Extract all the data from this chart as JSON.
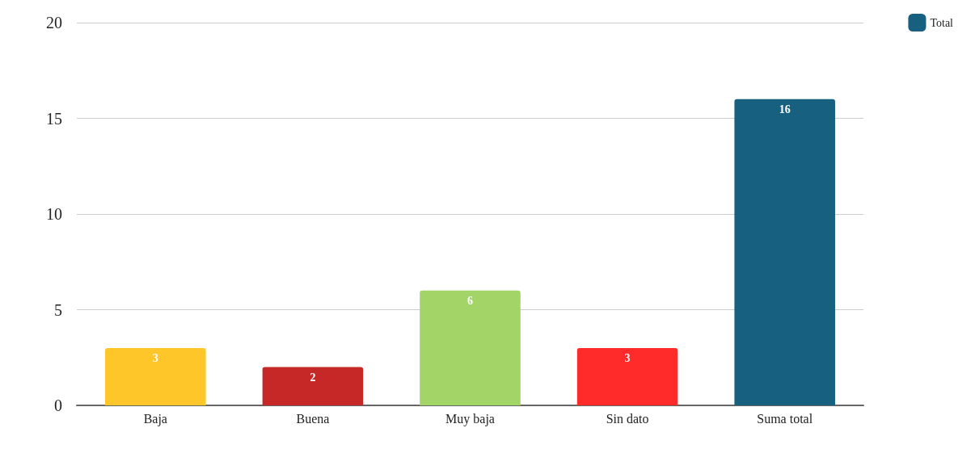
{
  "chart_data": {
    "type": "bar",
    "categories": [
      "Baja",
      "Buena",
      "Muy baja",
      "Sin dato",
      "Suma total"
    ],
    "series": [
      {
        "name": "Total",
        "color": "#17607f",
        "colors": [
          "#ffc629",
          "#c62828",
          "#a2d468",
          "#ff2a2a",
          "#17607f"
        ],
        "values": [
          3,
          2,
          6,
          3,
          16
        ]
      }
    ],
    "ylim": [
      0,
      20
    ],
    "yticks": [
      0,
      5,
      10,
      15,
      20
    ],
    "grid": "y",
    "legend": "top right",
    "data_labels": true
  }
}
